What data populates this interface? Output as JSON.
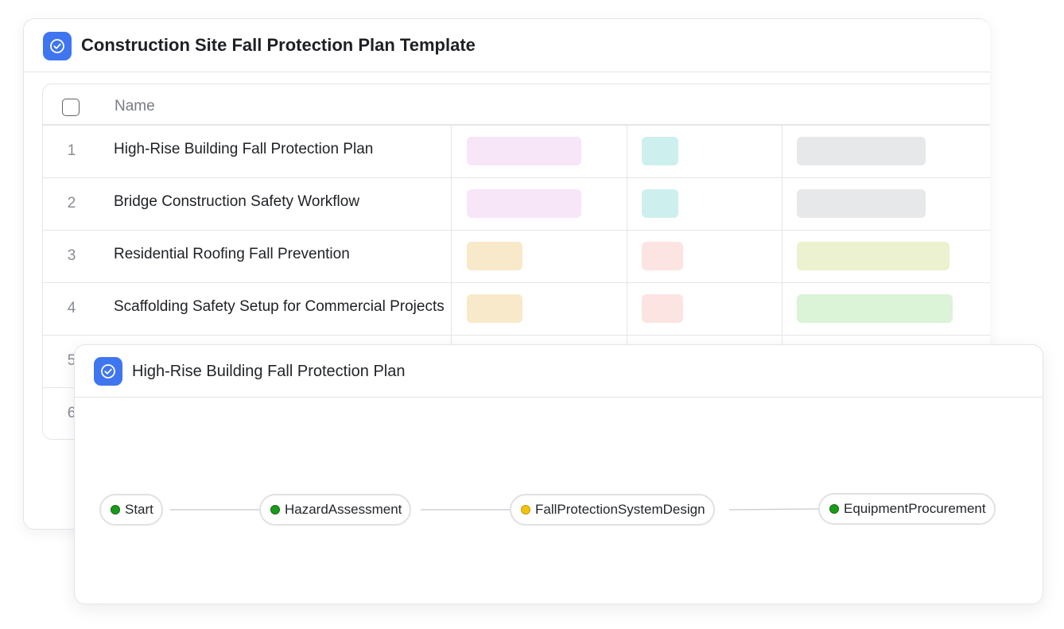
{
  "template_card": {
    "title": "Construction Site Fall Protection Plan Template",
    "icon": "check-circle-icon",
    "table": {
      "header": {
        "name_label": "Name"
      },
      "rows": [
        {
          "num": "1",
          "name": "High-Rise Building Fall Protection Plan"
        },
        {
          "num": "2",
          "name": "Bridge Construction Safety Workflow"
        },
        {
          "num": "3",
          "name": "Residential Roofing Fall Prevention"
        },
        {
          "num": "4",
          "name": "Scaffolding Safety Setup for Commercial Projects"
        },
        {
          "num": "5",
          "name": ""
        },
        {
          "num": "6",
          "name": ""
        }
      ]
    },
    "colors": {
      "pink": "#f7e5f8",
      "teal": "#cdf0ee",
      "gray": "#e7e8ea",
      "orange": "#f8e9cb",
      "red": "#fce4e2",
      "olive": "#ecf1cf",
      "green": "#dbf3d6"
    }
  },
  "workflow_card": {
    "title": "High-Rise Building Fall Protection Plan",
    "icon": "check-circle-icon",
    "nodes": [
      {
        "label": "Start",
        "status": "green"
      },
      {
        "label": "HazardAssessment",
        "status": "green"
      },
      {
        "label": "FallProtectionSystemDesign",
        "status": "yellow"
      },
      {
        "label": "EquipmentProcurement",
        "status": "green"
      }
    ],
    "colors": {
      "green": "#1a9a1a",
      "yellow": "#f2c20e",
      "accent": "#3f76f0"
    }
  }
}
